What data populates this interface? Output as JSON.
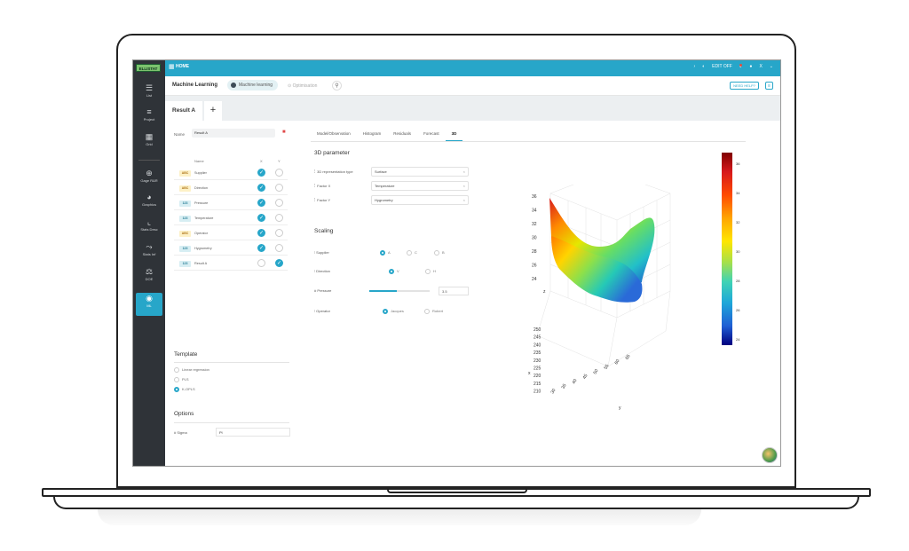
{
  "app": {
    "logo": "ELLISTAT",
    "breadcrumb_home": "HOME",
    "edit_off": "EDIT OFF",
    "user_initial": "X",
    "need_help": "NEED HELP?"
  },
  "sidebar": {
    "items": [
      {
        "label": "List",
        "icon": "list-icon"
      },
      {
        "label": "Project",
        "icon": "project-icon"
      },
      {
        "label": "Grid",
        "icon": "grid-icon"
      },
      {
        "label": "Gage R&R",
        "icon": "gage-icon"
      },
      {
        "label": "Graphics",
        "icon": "pie-chart-icon"
      },
      {
        "label": "Stats Desc",
        "icon": "stats-desc-icon"
      },
      {
        "label": "Stats Inf",
        "icon": "stats-inf-icon"
      },
      {
        "label": "DOE",
        "icon": "doe-icon"
      },
      {
        "label": "ML",
        "icon": "ml-icon"
      }
    ]
  },
  "header": {
    "title": "Machine Learning",
    "tab_ml": "Machine learning",
    "tab_opt": "Optimisation"
  },
  "results": {
    "tab": "Result A",
    "add": "+"
  },
  "left": {
    "name_label": "Name",
    "name_value": "Result A",
    "table_headers": {
      "name": "Name",
      "x": "X",
      "y": "Y"
    },
    "rows": [
      {
        "type": "ABC",
        "name": "Supplier",
        "x": true,
        "y": false
      },
      {
        "type": "ABC",
        "name": "Direction",
        "x": true,
        "y": false
      },
      {
        "type": "123",
        "name": "Pressure",
        "x": true,
        "y": false
      },
      {
        "type": "123",
        "name": "Temperature",
        "x": true,
        "y": false
      },
      {
        "type": "ABC",
        "name": "Operator",
        "x": true,
        "y": false
      },
      {
        "type": "123",
        "name": "Hygrometry",
        "x": true,
        "y": false
      },
      {
        "type": "123",
        "name": "Result A",
        "x": false,
        "y": true
      }
    ],
    "template_title": "Template",
    "templates": [
      {
        "label": "Linear regression",
        "selected": false
      },
      {
        "label": "PLS",
        "selected": false
      },
      {
        "label": "K-OPLS",
        "selected": true
      }
    ],
    "options_title": "Options",
    "sigma_label": "Sigma",
    "sigma_value": "Pl"
  },
  "right": {
    "tabs": [
      "Model/Observation",
      "Histogram",
      "Residuals",
      "Forecast",
      "3D"
    ],
    "active_tab": "3D",
    "param_title": "3D parameter",
    "params": [
      {
        "label": "3D representation type",
        "value": "Surface"
      },
      {
        "label": "Factor X",
        "value": "Temperature"
      },
      {
        "label": "Factor Y",
        "value": "Hygrometry"
      }
    ],
    "scaling_title": "Scaling",
    "scaling": {
      "supplier_label": "Supplier",
      "supplier_opts": [
        "A",
        "C",
        "B"
      ],
      "direction_label": "Direction",
      "direction_opts": [
        "V",
        "H"
      ],
      "pressure_label": "Pressure",
      "pressure_value": "3.5",
      "pressure_fraction": 0.45,
      "operator_label": "Operator",
      "operator_opts": [
        "Jacques",
        "Robert"
      ]
    }
  },
  "plot": {
    "z_label": "z",
    "x_label": "x",
    "y_label": "y",
    "z_ticks": [
      "36",
      "34",
      "32",
      "30",
      "28",
      "26",
      "24"
    ],
    "x_ticks": [
      "250",
      "245",
      "240",
      "235",
      "230",
      "225",
      "220",
      "215",
      "210"
    ],
    "y_ticks": [
      "30",
      "35",
      "40",
      "45",
      "50",
      "55",
      "60",
      "65"
    ],
    "colorbar_ticks": [
      "36",
      "34",
      "32",
      "30",
      "28",
      "26",
      "24"
    ]
  }
}
